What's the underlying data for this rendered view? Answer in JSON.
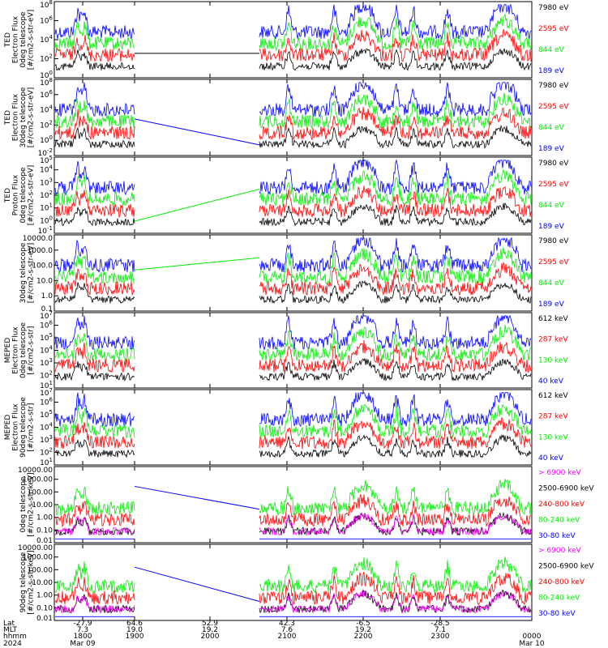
{
  "colors": {
    "black": "#000000",
    "red": "#ff0000",
    "green": "#00ee00",
    "blue": "#0000ff",
    "magenta": "#ff00ff"
  },
  "chart_data": [
    {
      "type": "line",
      "ylabel_lines": [
        "TED",
        "Electron Flux",
        "0deg telescope",
        "[#/cm2-s-str-eV]"
      ],
      "y_scale": "log",
      "yticks": [
        "10^8",
        "10^6",
        "10^4",
        "10^2",
        "10^0"
      ],
      "legend": [
        {
          "text": "7980 eV",
          "color": "black"
        },
        {
          "text": "2595 eV",
          "color": "red"
        },
        {
          "text": "844 eV",
          "color": "green"
        },
        {
          "text": "189 eV",
          "color": "blue"
        }
      ]
    },
    {
      "type": "line",
      "ylabel_lines": [
        "TED",
        "Electron Flux",
        "30deg telescope",
        "[#/cm2-s-str-eV]"
      ],
      "y_scale": "log",
      "yticks": [
        "10^8",
        "10^6",
        "10^4",
        "10^2",
        "10^0",
        "10^-2"
      ],
      "legend": [
        {
          "text": "7980 eV",
          "color": "black"
        },
        {
          "text": "2595 eV",
          "color": "red"
        },
        {
          "text": "844 eV",
          "color": "green"
        },
        {
          "text": "189 eV",
          "color": "blue"
        }
      ]
    },
    {
      "type": "line",
      "ylabel_lines": [
        "TED",
        "Proton Flux",
        "0deg telescope",
        "[#/cm2-s-str-eV]"
      ],
      "y_scale": "log",
      "yticks": [
        "10^5",
        "10^4",
        "10^3",
        "10^2",
        "10^1",
        "10^0",
        "10^-1"
      ],
      "legend": [
        {
          "text": "7980 eV",
          "color": "black"
        },
        {
          "text": "2595 eV",
          "color": "red"
        },
        {
          "text": "844 eV",
          "color": "green"
        },
        {
          "text": "189 eV",
          "color": "blue"
        }
      ]
    },
    {
      "type": "line",
      "ylabel_lines": [
        "30deg telescope",
        "[#/cm2-s-str-eV]"
      ],
      "y_scale": "log",
      "yticks": [
        "10000.0",
        "1000.0",
        "100.0",
        "10.0",
        "1.0",
        "0.1"
      ],
      "legend": [
        {
          "text": "7980 eV",
          "color": "black"
        },
        {
          "text": "2595 eV",
          "color": "red"
        },
        {
          "text": "844 eV",
          "color": "green"
        },
        {
          "text": "189 eV",
          "color": "blue"
        }
      ]
    },
    {
      "type": "line",
      "ylabel_lines": [
        "MEPED",
        "Electron Flux",
        "0deg telescope",
        "[#/cm2-s-str]"
      ],
      "y_scale": "log",
      "yticks": [
        "10^7",
        "10^6",
        "10^5",
        "10^4",
        "10^3",
        "10^2",
        "10^1"
      ],
      "legend": [
        {
          "text": "612 keV",
          "color": "black"
        },
        {
          "text": "287 keV",
          "color": "red"
        },
        {
          "text": "130 keV",
          "color": "green"
        },
        {
          "text": "40 keV",
          "color": "blue"
        }
      ]
    },
    {
      "type": "line",
      "ylabel_lines": [
        "MEPED",
        "Electron Flux",
        "90deg telescope",
        "[#/cm2-s-str]"
      ],
      "y_scale": "log",
      "yticks": [
        "10^7",
        "10^6",
        "10^5",
        "10^4",
        "10^3",
        "10^2",
        "10^1"
      ],
      "legend": [
        {
          "text": "612 keV",
          "color": "black"
        },
        {
          "text": "287 keV",
          "color": "red"
        },
        {
          "text": "130 keV",
          "color": "green"
        },
        {
          "text": "40 keV",
          "color": "blue"
        }
      ]
    },
    {
      "type": "line",
      "ylabel_lines": [
        "0deg telescope",
        "[#/cm2-s-str-keV]"
      ],
      "y_scale": "log",
      "yticks": [
        "10000.00",
        "1000.00",
        "100.00",
        "10.00",
        "1.00",
        "0.10",
        "0.01"
      ],
      "legend": [
        {
          "text": "> 6900 keV",
          "color": "magenta"
        },
        {
          "text": "2500-6900 keV",
          "color": "black"
        },
        {
          "text": "240-800 keV",
          "color": "red"
        },
        {
          "text": "80-240 keV",
          "color": "green"
        },
        {
          "text": "30-80 keV",
          "color": "blue"
        }
      ]
    },
    {
      "type": "line",
      "ylabel_lines": [
        "90deg telescope",
        "[#/cm2-s-str-keV]"
      ],
      "y_scale": "log",
      "yticks": [
        "10000.00",
        "1000.00",
        "100.00",
        "10.00",
        "1.00",
        "0.10",
        "0.01"
      ],
      "legend": [
        {
          "text": "> 6900 keV",
          "color": "magenta"
        },
        {
          "text": "2500-6900 keV",
          "color": "black"
        },
        {
          "text": "240-800 keV",
          "color": "red"
        },
        {
          "text": "80-240 keV",
          "color": "green"
        },
        {
          "text": "30-80 keV",
          "color": "blue"
        }
      ]
    }
  ],
  "x_axis": {
    "row_labels": [
      "Lat",
      "MLT",
      "hhmm",
      "2024"
    ],
    "columns": [
      {
        "lat": "-27.9",
        "mlt": "7.3",
        "hhmm": "1800",
        "date": "Mar 09"
      },
      {
        "lat": "64.6",
        "mlt": "19.0",
        "hhmm": "1900",
        "date": ""
      },
      {
        "lat": "52.9",
        "mlt": "19.2",
        "hhmm": "2000",
        "date": ""
      },
      {
        "lat": "42.3",
        "mlt": "7.6",
        "hhmm": "2100",
        "date": ""
      },
      {
        "lat": "-6.5",
        "mlt": "19.2",
        "hhmm": "2200",
        "date": ""
      },
      {
        "lat": "-28.5",
        "mlt": "7.1",
        "hhmm": "2300",
        "date": ""
      },
      {
        "lat": "",
        "mlt": "",
        "hhmm": "0000",
        "date": "Mar 10"
      }
    ]
  }
}
